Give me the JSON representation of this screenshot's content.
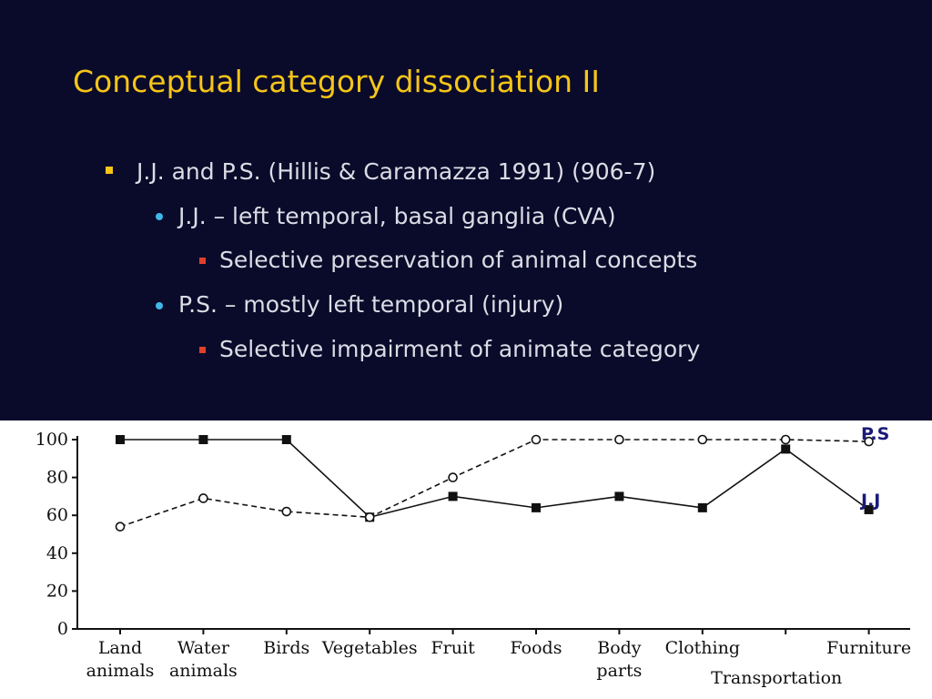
{
  "slide": {
    "title": "Conceptual category dissociation II",
    "bullets": [
      {
        "level": 1,
        "text": "J.J. and P.S. (Hillis & Caramazza 1991) (906-7)"
      },
      {
        "level": 2,
        "text": "J.J. – left temporal, basal ganglia (CVA)"
      },
      {
        "level": 3,
        "text": "Selective preservation of animal concepts"
      },
      {
        "level": 2,
        "text": "P.S. – mostly left temporal (injury)"
      },
      {
        "level": 3,
        "text": "Selective impairment of animate category"
      }
    ],
    "colors": {
      "background": "#0a0a2a",
      "title": "#f5c518",
      "text": "#dcdce6",
      "level1_marker": "#f5c518",
      "level2_marker": "#3fb7e8",
      "level3_marker": "#e0402a"
    }
  },
  "chart_data": {
    "type": "line",
    "title": "",
    "xlabel": "",
    "ylabel": "",
    "ylim": [
      0,
      100
    ],
    "yticks": [
      "0",
      "20",
      "40",
      "60",
      "80",
      "100"
    ],
    "categories": [
      {
        "lines": [
          "Land",
          "animals"
        ]
      },
      {
        "lines": [
          "Water",
          "animals"
        ]
      },
      {
        "lines": [
          "Birds"
        ]
      },
      {
        "lines": [
          "Vegetables"
        ]
      },
      {
        "lines": [
          "Fruit"
        ]
      },
      {
        "lines": [
          "Foods"
        ]
      },
      {
        "lines": [
          "Body",
          "parts"
        ]
      },
      {
        "lines": [
          "Clothing"
        ]
      },
      {
        "lines": [
          "Transportation"
        ]
      },
      {
        "lines": [
          "Furniture"
        ]
      }
    ],
    "series": [
      {
        "name": "J.J",
        "marker": "filled-square",
        "line": "solid",
        "values": [
          100,
          100,
          100,
          59,
          70,
          64,
          70,
          64,
          95,
          63
        ]
      },
      {
        "name": "P.S",
        "marker": "open-circle",
        "line": "dashed",
        "values": [
          54,
          69,
          62,
          59,
          80,
          100,
          100,
          100,
          100,
          99
        ]
      }
    ],
    "grid": false
  }
}
